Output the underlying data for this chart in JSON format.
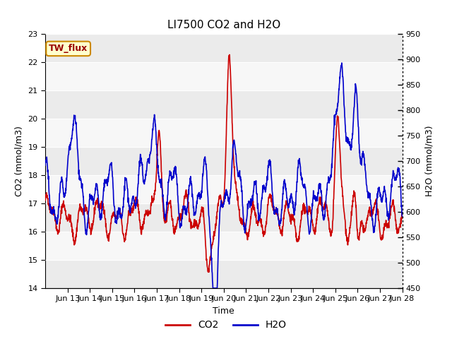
{
  "title": "LI7500 CO2 and H2O",
  "xlabel": "Time",
  "ylabel_left": "CO2 (mmol/m3)",
  "ylabel_right": "H2O (mmol/m3)",
  "annotation": "TW_flux",
  "co2_ylim": [
    14.0,
    23.0
  ],
  "h2o_ylim": [
    450,
    950
  ],
  "co2_yticks": [
    14.0,
    15.0,
    16.0,
    17.0,
    18.0,
    19.0,
    20.0,
    21.0,
    22.0,
    23.0
  ],
  "h2o_yticks": [
    450,
    500,
    550,
    600,
    650,
    700,
    750,
    800,
    850,
    900,
    950
  ],
  "x_tick_labels": [
    "Jun 13",
    "Jun 14",
    "Jun 15",
    "Jun 16",
    "Jun 17",
    "Jun 18",
    "Jun 19",
    "Jun 20",
    "Jun 21",
    "Jun 22",
    "Jun 23",
    "Jun 24",
    "Jun 25",
    "Jun 26",
    "Jun 27",
    "Jun 28"
  ],
  "co2_color": "#cc0000",
  "h2o_color": "#0000cc",
  "bg_color": "#ffffff",
  "band_light": "#ebebeb",
  "band_white": "#f7f7f7",
  "annotation_bg": "#ffffcc",
  "annotation_border": "#cc8800",
  "annotation_text_color": "#990000",
  "linewidth": 1.2,
  "legend_fontsize": 10,
  "title_fontsize": 11,
  "axis_fontsize": 9,
  "tick_fontsize": 8
}
